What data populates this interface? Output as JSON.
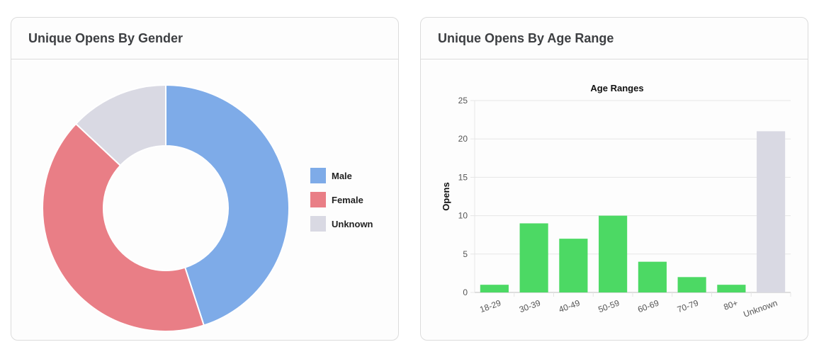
{
  "colors": {
    "male": "#7eabe8",
    "female": "#e97e86",
    "unknown": "#d9d9e3",
    "bar_green": "#4cd964",
    "grid": "#e6e6e6",
    "axis": "#bfbfbf"
  },
  "cards": {
    "gender": {
      "title": "Unique Opens By Gender"
    },
    "age": {
      "title": "Unique Opens By Age Range"
    }
  },
  "chart_data": [
    {
      "type": "pie",
      "variant": "doughnut",
      "title": "",
      "labels": [
        "Male",
        "Female",
        "Unknown"
      ],
      "values": [
        45,
        42,
        13
      ],
      "colors": [
        "#7eabe8",
        "#e97e86",
        "#d9d9e3"
      ],
      "legend": "right"
    },
    {
      "type": "bar",
      "title": "Age Ranges",
      "xlabel": "",
      "ylabel": "Opens",
      "categories": [
        "18-29",
        "30-39",
        "40-49",
        "50-59",
        "60-69",
        "70-79",
        "80+",
        "Unknown"
      ],
      "values": [
        1,
        9,
        7,
        10,
        4,
        2,
        1,
        21
      ],
      "bar_colors": [
        "#4cd964",
        "#4cd964",
        "#4cd964",
        "#4cd964",
        "#4cd964",
        "#4cd964",
        "#4cd964",
        "#d9d9e3"
      ],
      "ylim": [
        0,
        25
      ],
      "yticks": [
        0,
        5,
        10,
        15,
        20,
        25
      ],
      "grid": true,
      "legend": "none"
    }
  ]
}
